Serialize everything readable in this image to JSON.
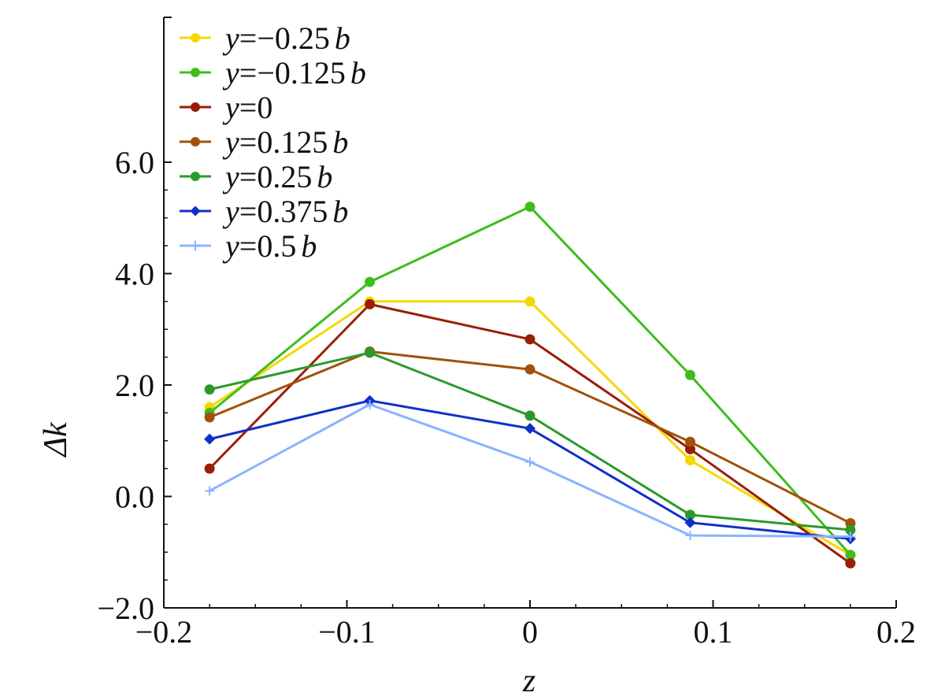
{
  "chart_data": {
    "type": "line",
    "xlabel": "z",
    "ylabel": "Δk",
    "xlim": [
      -0.2,
      0.2
    ],
    "ylim": [
      -2.0,
      8.6
    ],
    "x_ticks": [
      -0.2,
      -0.1,
      0,
      0.1,
      0.2
    ],
    "x_tick_labels": [
      "−0.2",
      "−0.1",
      "0",
      "0.1",
      "0.2"
    ],
    "y_ticks": [
      -2.0,
      0.0,
      2.0,
      4.0,
      6.0
    ],
    "y_tick_labels": [
      "−2.0",
      "0.0",
      "2.0",
      "4.0",
      "6.0"
    ],
    "legend_position": "top-left",
    "x": [
      -0.175,
      -0.0875,
      0,
      0.0875,
      0.175
    ],
    "series": [
      {
        "name": "y=−0.25b",
        "color": "#f5d800",
        "marker": "circle",
        "values": [
          1.6,
          3.5,
          3.5,
          0.65,
          -1.05
        ]
      },
      {
        "name": "y=−0.125b",
        "color": "#3cbe1e",
        "marker": "circle",
        "values": [
          1.5,
          3.85,
          5.2,
          2.18,
          -1.05
        ]
      },
      {
        "name": "y=0",
        "color": "#9a1e06",
        "marker": "circle",
        "values": [
          0.5,
          3.45,
          2.82,
          0.85,
          -1.2
        ]
      },
      {
        "name": "y=0.125b",
        "color": "#a0520a",
        "marker": "circle",
        "values": [
          1.42,
          2.6,
          2.28,
          0.98,
          -0.48
        ]
      },
      {
        "name": "y=0.25b",
        "color": "#2a9a2a",
        "marker": "circle",
        "values": [
          1.92,
          2.58,
          1.45,
          -0.33,
          -0.6
        ]
      },
      {
        "name": "y=0.375b",
        "color": "#1030c8",
        "marker": "diamond",
        "values": [
          1.03,
          1.72,
          1.22,
          -0.47,
          -0.76
        ]
      },
      {
        "name": "y=0.5b",
        "color": "#8ab4ff",
        "marker": "plus",
        "values": [
          0.1,
          1.65,
          0.62,
          -0.7,
          -0.72
        ]
      }
    ],
    "legend": [
      {
        "prefix": "y",
        "eq": "=−0.25",
        "suffix": "b"
      },
      {
        "prefix": "y",
        "eq": "=−0.125",
        "suffix": "b"
      },
      {
        "prefix": "y",
        "eq": "=0",
        "suffix": ""
      },
      {
        "prefix": "y",
        "eq": "=0.125",
        "suffix": "b"
      },
      {
        "prefix": "y",
        "eq": "=0.25",
        "suffix": "b"
      },
      {
        "prefix": "y",
        "eq": "=0.375",
        "suffix": "b"
      },
      {
        "prefix": "y",
        "eq": "=0.5",
        "suffix": "b"
      }
    ]
  }
}
